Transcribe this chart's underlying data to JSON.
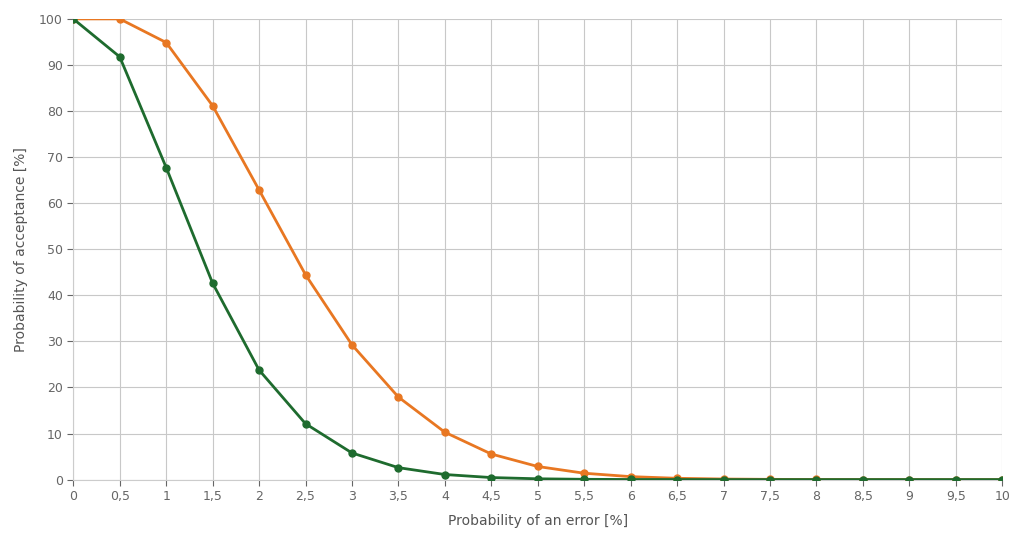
{
  "title": "",
  "xlabel": "Probability of an error [%]",
  "ylabel": "Probability of acceptance [%]",
  "x_values": [
    0,
    0.5,
    1.0,
    1.5,
    2.0,
    2.5,
    3.0,
    3.5,
    4.0,
    4.5,
    5.0,
    5.5,
    6.0,
    6.5,
    7.0,
    7.5,
    8.0,
    8.5,
    9.0,
    9.5,
    10.0
  ],
  "orange_y": [
    100.0,
    100.0,
    94.87,
    81.14,
    62.87,
    44.47,
    29.25,
    17.91,
    10.28,
    5.55,
    2.84,
    1.38,
    0.64,
    0.28,
    0.12,
    0.05,
    0.02,
    0.01,
    0.0,
    0.0,
    0.0
  ],
  "green_y": [
    100.0,
    91.76,
    67.74,
    42.63,
    23.78,
    12.13,
    5.78,
    2.59,
    1.1,
    0.44,
    0.17,
    0.06,
    0.02,
    0.01,
    0.0,
    0.0,
    0.0,
    0.0,
    0.0,
    0.0,
    0.0
  ],
  "color_orange": "#E87722",
  "color_green": "#1E6B2E",
  "background_color": "#FFFFFF",
  "grid_color": "#C8C8C8",
  "marker": "o",
  "marker_size": 5,
  "line_width": 2.0,
  "ylim": [
    0,
    100
  ],
  "xlim": [
    0,
    10
  ],
  "xtick_labels": [
    "0",
    "0,5",
    "1",
    "1,5",
    "2",
    "2,5",
    "3",
    "3,5",
    "4",
    "4,5",
    "5",
    "5,5",
    "6",
    "6,5",
    "7",
    "7,5",
    "8",
    "8,5",
    "9",
    "9,5",
    "10"
  ],
  "ytick_values": [
    0,
    10,
    20,
    30,
    40,
    50,
    60,
    70,
    80,
    90,
    100
  ]
}
